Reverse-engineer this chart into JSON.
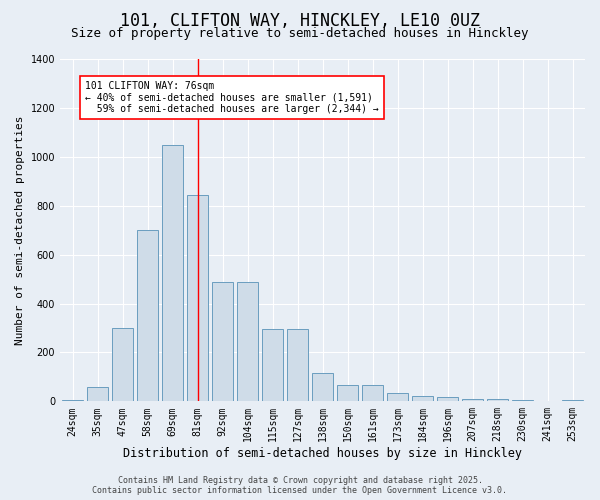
{
  "title": "101, CLIFTON WAY, HINCKLEY, LE10 0UZ",
  "subtitle": "Size of property relative to semi-detached houses in Hinckley",
  "xlabel": "Distribution of semi-detached houses by size in Hinckley",
  "ylabel": "Number of semi-detached properties",
  "bar_color": "#cfdce8",
  "bar_edge_color": "#6a9dbf",
  "background_color": "#e8eef5",
  "grid_color": "#ffffff",
  "categories": [
    "24sqm",
    "35sqm",
    "47sqm",
    "58sqm",
    "69sqm",
    "81sqm",
    "92sqm",
    "104sqm",
    "115sqm",
    "127sqm",
    "138sqm",
    "150sqm",
    "161sqm",
    "173sqm",
    "184sqm",
    "196sqm",
    "207sqm",
    "218sqm",
    "230sqm",
    "241sqm",
    "253sqm"
  ],
  "values": [
    5,
    60,
    300,
    700,
    1050,
    845,
    490,
    490,
    295,
    295,
    115,
    65,
    65,
    35,
    20,
    18,
    10,
    8,
    5,
    3,
    5
  ],
  "property_label": "101 CLIFTON WAY: 76sqm",
  "pct_smaller": 40,
  "pct_larger": 59,
  "count_smaller": 1591,
  "count_larger": 2344,
  "vline_index": 5,
  "footer_line1": "Contains HM Land Registry data © Crown copyright and database right 2025.",
  "footer_line2": "Contains public sector information licensed under the Open Government Licence v3.0.",
  "ylim": [
    0,
    1400
  ],
  "title_fontsize": 12,
  "subtitle_fontsize": 9,
  "tick_fontsize": 7,
  "ylabel_fontsize": 8,
  "xlabel_fontsize": 8.5,
  "annotation_fontsize": 7,
  "footer_fontsize": 6
}
